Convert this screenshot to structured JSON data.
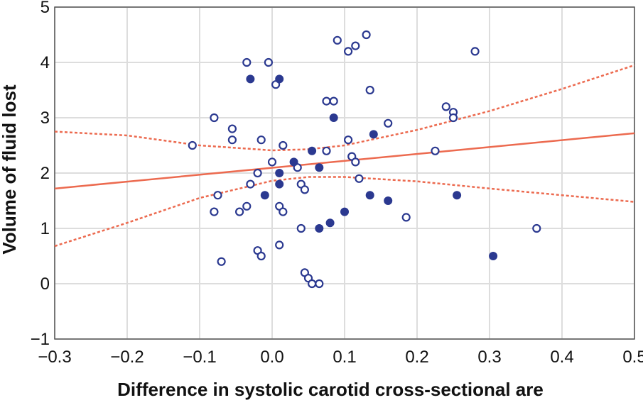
{
  "chart_data": {
    "type": "scatter",
    "title": "",
    "xlabel": "Difference in systolic carotid cross-sectional are",
    "ylabel": "Volume of fluid lost",
    "xlim": [
      -0.3,
      0.5
    ],
    "ylim": [
      -1,
      5
    ],
    "xticks": [
      "−0.3",
      "−0.2",
      "−0.1",
      "0.0",
      "0.1",
      "0.2",
      "0.3",
      "0.4",
      "0.5"
    ],
    "yticks": [
      "−1",
      "0",
      "1",
      "2",
      "3",
      "4",
      "5"
    ],
    "grid": true,
    "colors": {
      "points": "#2b3990",
      "fit": "#ec6a4f",
      "grid": "#dddddd",
      "axis": "#555555"
    },
    "series": [
      {
        "marker": "open-circle",
        "points": [
          [
            -0.035,
            4.0
          ],
          [
            -0.005,
            4.0
          ],
          [
            0.005,
            3.6
          ],
          [
            0.09,
            4.4
          ],
          [
            0.13,
            4.5
          ],
          [
            0.105,
            4.2
          ],
          [
            0.115,
            4.3
          ],
          [
            0.28,
            4.2
          ],
          [
            0.135,
            3.5
          ],
          [
            0.075,
            3.3
          ],
          [
            0.085,
            3.3
          ],
          [
            0.24,
            3.2
          ],
          [
            0.25,
            3.1
          ],
          [
            0.25,
            3.0
          ],
          [
            -0.08,
            3.0
          ],
          [
            -0.055,
            2.8
          ],
          [
            -0.055,
            2.6
          ],
          [
            -0.015,
            2.6
          ],
          [
            0.16,
            2.9
          ],
          [
            0.105,
            2.6
          ],
          [
            -0.11,
            2.5
          ],
          [
            0.015,
            2.5
          ],
          [
            0.075,
            2.4
          ],
          [
            0.225,
            2.4
          ],
          [
            0.11,
            2.3
          ],
          [
            0.115,
            2.2
          ],
          [
            0.0,
            2.2
          ],
          [
            0.035,
            2.1
          ],
          [
            -0.02,
            2.0
          ],
          [
            0.12,
            1.9
          ],
          [
            -0.03,
            1.8
          ],
          [
            0.04,
            1.8
          ],
          [
            0.045,
            1.7
          ],
          [
            -0.075,
            1.6
          ],
          [
            -0.08,
            1.3
          ],
          [
            -0.045,
            1.3
          ],
          [
            -0.035,
            1.4
          ],
          [
            0.01,
            1.4
          ],
          [
            0.015,
            1.3
          ],
          [
            0.04,
            1.0
          ],
          [
            0.185,
            1.2
          ],
          [
            0.365,
            1.0
          ],
          [
            0.01,
            0.7
          ],
          [
            -0.02,
            0.6
          ],
          [
            -0.015,
            0.5
          ],
          [
            -0.07,
            0.4
          ],
          [
            0.045,
            0.2
          ],
          [
            0.05,
            0.1
          ],
          [
            0.055,
            0.0
          ],
          [
            0.065,
            0.0
          ]
        ]
      },
      {
        "marker": "filled-circle",
        "points": [
          [
            -0.03,
            3.7
          ],
          [
            0.01,
            3.7
          ],
          [
            0.085,
            3.0
          ],
          [
            0.14,
            2.7
          ],
          [
            0.055,
            2.4
          ],
          [
            0.03,
            2.2
          ],
          [
            0.065,
            2.1
          ],
          [
            0.01,
            2.0
          ],
          [
            0.01,
            1.8
          ],
          [
            -0.01,
            1.6
          ],
          [
            0.135,
            1.6
          ],
          [
            0.16,
            1.5
          ],
          [
            0.255,
            1.6
          ],
          [
            0.1,
            1.3
          ],
          [
            0.08,
            1.1
          ],
          [
            0.065,
            1.0
          ],
          [
            0.305,
            0.5
          ]
        ]
      }
    ],
    "regression_line": {
      "x": [
        -0.3,
        0.5
      ],
      "y": [
        1.72,
        2.72
      ]
    },
    "confidence_band": {
      "upper": {
        "x": [
          -0.3,
          -0.2,
          -0.1,
          0.0,
          0.05,
          0.1,
          0.2,
          0.3,
          0.4,
          0.5
        ],
        "y": [
          2.75,
          2.68,
          2.5,
          2.41,
          2.43,
          2.5,
          2.78,
          3.12,
          3.52,
          3.95
        ]
      },
      "lower": {
        "x": [
          -0.3,
          -0.2,
          -0.1,
          0.0,
          0.05,
          0.1,
          0.2,
          0.3,
          0.4,
          0.5
        ],
        "y": [
          0.68,
          1.1,
          1.55,
          1.86,
          1.93,
          1.93,
          1.85,
          1.72,
          1.6,
          1.48
        ]
      }
    }
  }
}
